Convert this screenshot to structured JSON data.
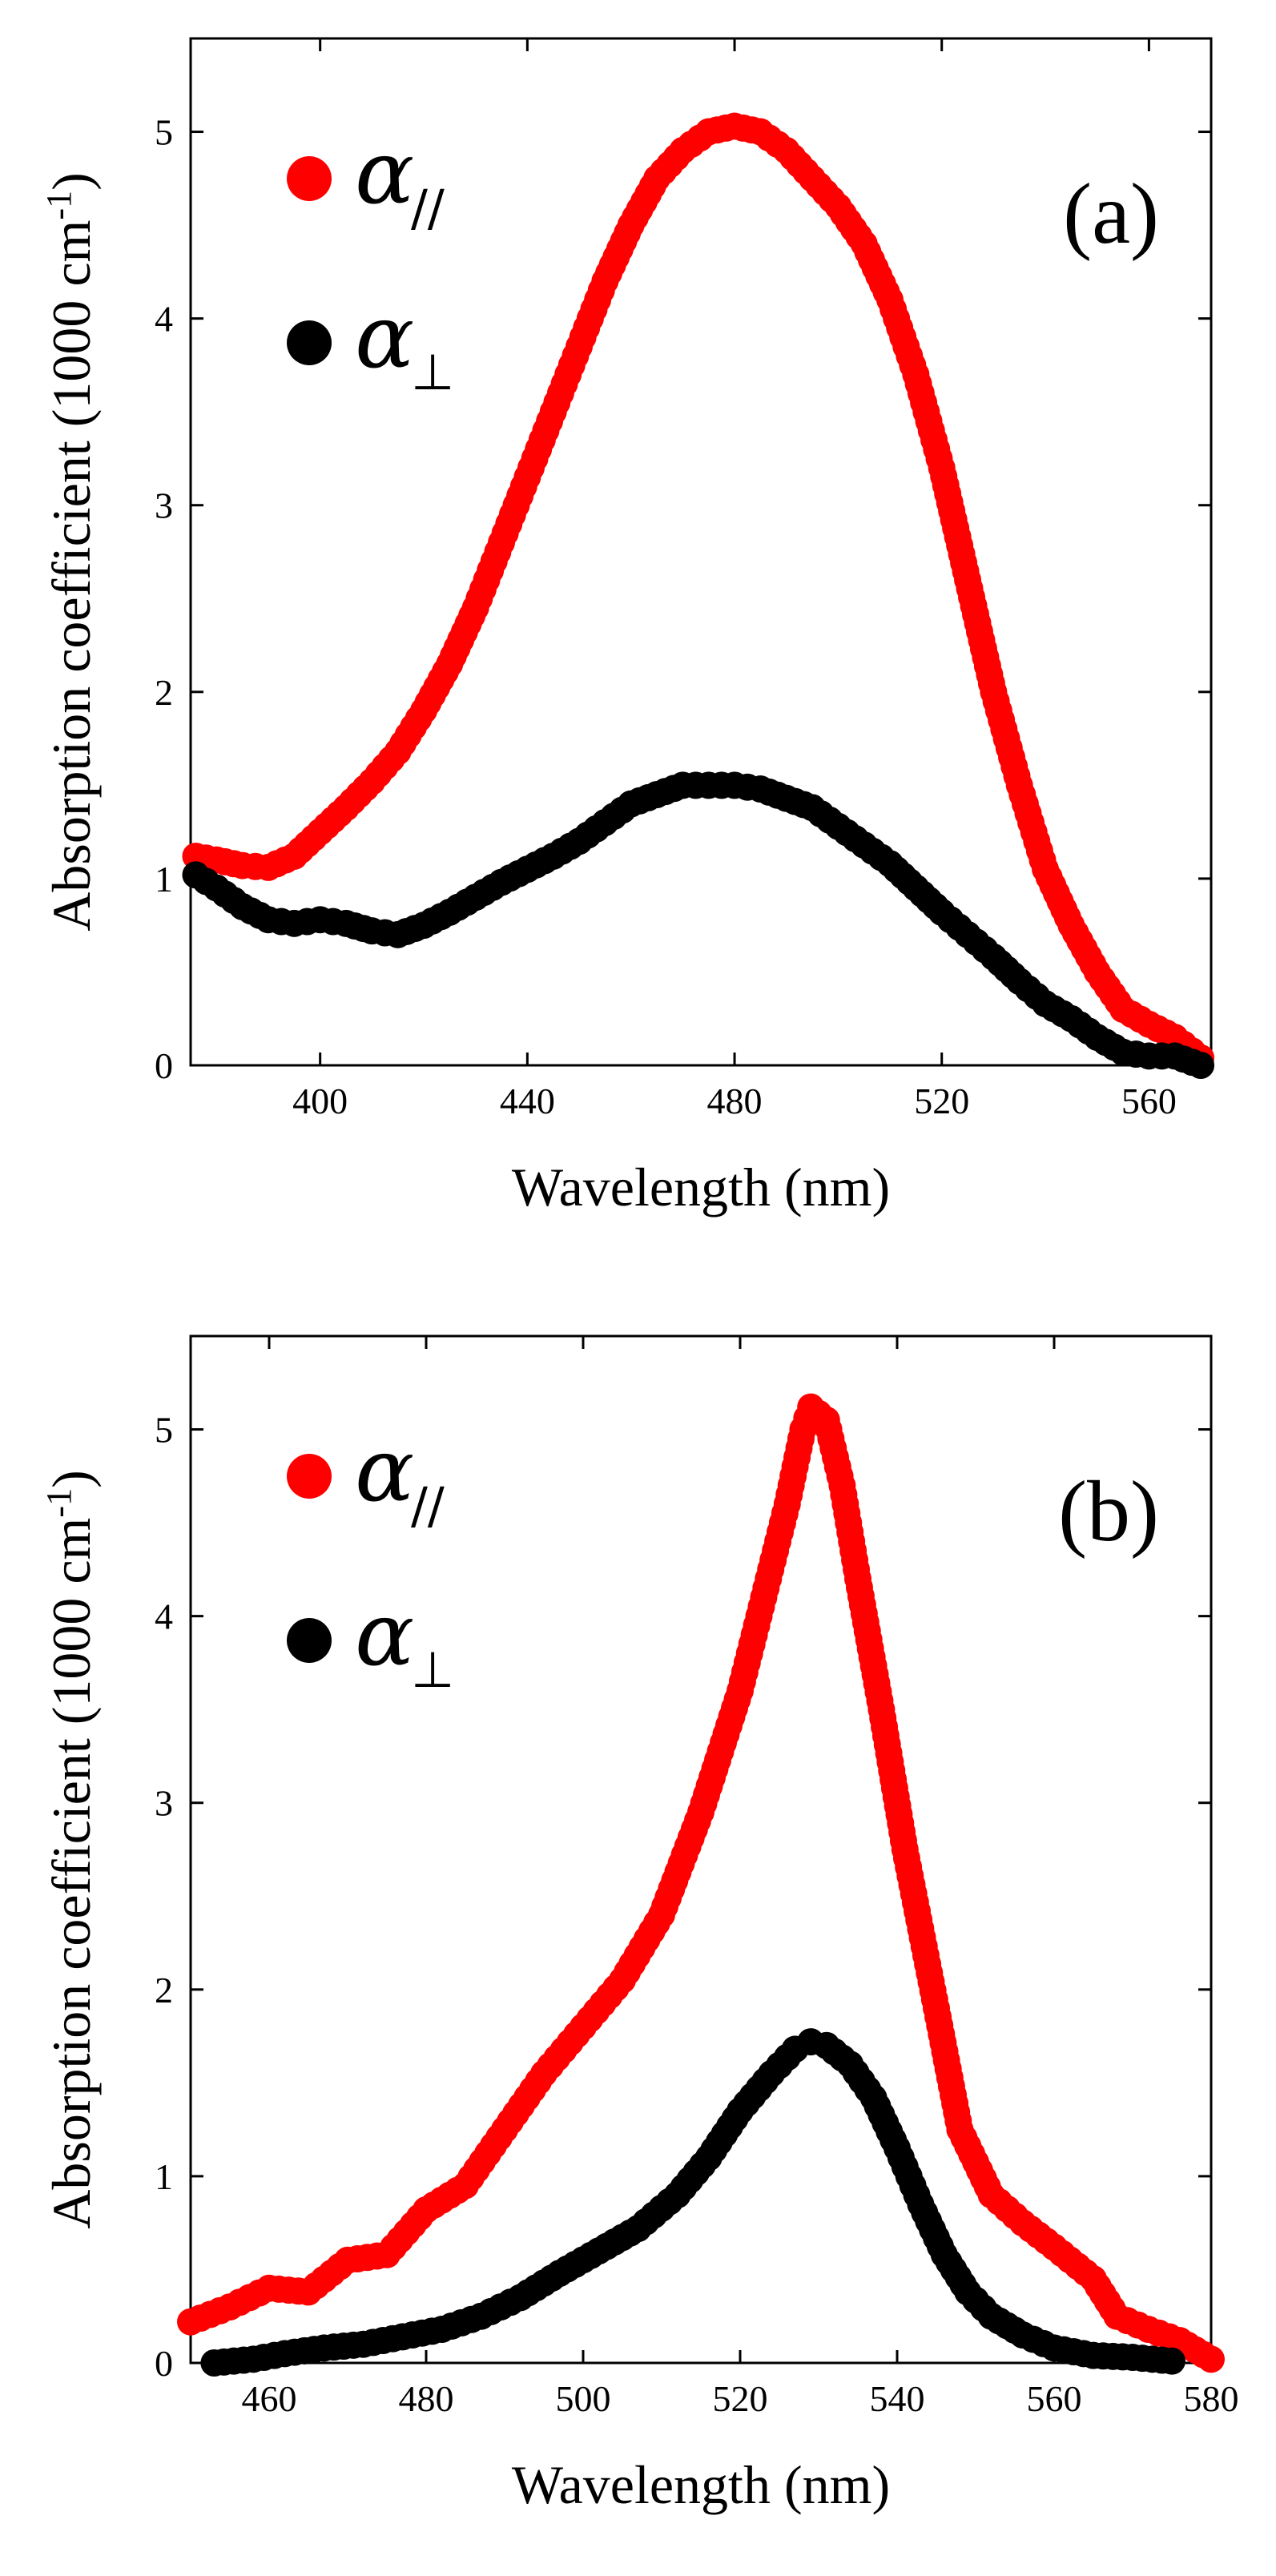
{
  "chart_data": [
    {
      "type": "scatter",
      "panel_label": "(a)",
      "xlabel": "Wavelength (nm)",
      "ylabel": "Absorption coefficient (1000 cm",
      "ylabel_sup": "-1",
      "ylabel_close": ")",
      "xlim": [
        375,
        572
      ],
      "ylim": [
        0,
        5.5
      ],
      "xticks": [
        400,
        440,
        480,
        520,
        560
      ],
      "yticks": [
        0,
        1,
        2,
        3,
        4,
        5
      ],
      "legend": [
        {
          "symbol": "α",
          "subscript": "//",
          "color": "#ff0000"
        },
        {
          "symbol": "α",
          "subscript": "⊥",
          "color": "#000000"
        }
      ],
      "series": [
        {
          "name": "α//",
          "color": "#ff0000",
          "points": [
            [
              376,
              1.12
            ],
            [
              380,
              1.1
            ],
            [
              385,
              1.07
            ],
            [
              390,
              1.06
            ],
            [
              395,
              1.12
            ],
            [
              400,
              1.25
            ],
            [
              405,
              1.38
            ],
            [
              410,
              1.52
            ],
            [
              415,
              1.68
            ],
            [
              420,
              1.9
            ],
            [
              425,
              2.15
            ],
            [
              430,
              2.45
            ],
            [
              435,
              2.8
            ],
            [
              440,
              3.15
            ],
            [
              445,
              3.5
            ],
            [
              450,
              3.85
            ],
            [
              455,
              4.2
            ],
            [
              460,
              4.5
            ],
            [
              465,
              4.75
            ],
            [
              470,
              4.9
            ],
            [
              475,
              5.0
            ],
            [
              480,
              5.03
            ],
            [
              485,
              5.0
            ],
            [
              490,
              4.9
            ],
            [
              495,
              4.75
            ],
            [
              500,
              4.6
            ],
            [
              505,
              4.4
            ],
            [
              510,
              4.1
            ],
            [
              515,
              3.7
            ],
            [
              520,
              3.2
            ],
            [
              525,
              2.6
            ],
            [
              530,
              2.0
            ],
            [
              535,
              1.5
            ],
            [
              540,
              1.05
            ],
            [
              545,
              0.75
            ],
            [
              550,
              0.5
            ],
            [
              555,
              0.3
            ],
            [
              560,
              0.22
            ],
            [
              565,
              0.15
            ],
            [
              570,
              0.04
            ]
          ]
        },
        {
          "name": "α⊥",
          "color": "#000000",
          "points": [
            [
              376,
              1.02
            ],
            [
              380,
              0.95
            ],
            [
              385,
              0.85
            ],
            [
              390,
              0.78
            ],
            [
              395,
              0.76
            ],
            [
              400,
              0.78
            ],
            [
              405,
              0.76
            ],
            [
              410,
              0.72
            ],
            [
              415,
              0.7
            ],
            [
              420,
              0.75
            ],
            [
              425,
              0.82
            ],
            [
              430,
              0.9
            ],
            [
              435,
              0.98
            ],
            [
              440,
              1.05
            ],
            [
              445,
              1.12
            ],
            [
              450,
              1.2
            ],
            [
              455,
              1.3
            ],
            [
              460,
              1.4
            ],
            [
              465,
              1.45
            ],
            [
              470,
              1.5
            ],
            [
              475,
              1.5
            ],
            [
              480,
              1.5
            ],
            [
              485,
              1.48
            ],
            [
              490,
              1.43
            ],
            [
              495,
              1.38
            ],
            [
              500,
              1.28
            ],
            [
              505,
              1.18
            ],
            [
              510,
              1.08
            ],
            [
              515,
              0.95
            ],
            [
              520,
              0.82
            ],
            [
              525,
              0.7
            ],
            [
              530,
              0.58
            ],
            [
              535,
              0.45
            ],
            [
              540,
              0.33
            ],
            [
              545,
              0.25
            ],
            [
              550,
              0.15
            ],
            [
              555,
              0.07
            ],
            [
              560,
              0.05
            ],
            [
              565,
              0.05
            ],
            [
              570,
              0.0
            ]
          ]
        }
      ]
    },
    {
      "type": "scatter",
      "panel_label": "(b)",
      "xlabel": "Wavelength (nm)",
      "ylabel": "Absorption coefficient (1000 cm",
      "ylabel_sup": "-1",
      "ylabel_close": ")",
      "xlim": [
        450,
        580
      ],
      "ylim": [
        0,
        5.5
      ],
      "xticks": [
        460,
        480,
        500,
        520,
        540,
        560,
        580
      ],
      "yticks": [
        0,
        1,
        2,
        3,
        4,
        5
      ],
      "legend": [
        {
          "symbol": "α",
          "subscript": "//",
          "color": "#ff0000"
        },
        {
          "symbol": "α",
          "subscript": "⊥",
          "color": "#000000"
        }
      ],
      "series": [
        {
          "name": "α//",
          "color": "#ff0000",
          "points": [
            [
              450,
              0.22
            ],
            [
              455,
              0.3
            ],
            [
              460,
              0.4
            ],
            [
              465,
              0.38
            ],
            [
              470,
              0.55
            ],
            [
              475,
              0.58
            ],
            [
              480,
              0.82
            ],
            [
              485,
              0.95
            ],
            [
              490,
              1.25
            ],
            [
              495,
              1.55
            ],
            [
              500,
              1.8
            ],
            [
              505,
              2.05
            ],
            [
              510,
              2.4
            ],
            [
              515,
              2.95
            ],
            [
              520,
              3.6
            ],
            [
              523,
              4.1
            ],
            [
              526,
              4.6
            ],
            [
              528,
              5.0
            ],
            [
              529,
              5.12
            ],
            [
              531,
              5.05
            ],
            [
              533,
              4.7
            ],
            [
              535,
              4.2
            ],
            [
              538,
              3.5
            ],
            [
              541,
              2.75
            ],
            [
              545,
              1.9
            ],
            [
              548,
              1.25
            ],
            [
              552,
              0.9
            ],
            [
              556,
              0.75
            ],
            [
              560,
              0.62
            ],
            [
              565,
              0.45
            ],
            [
              568,
              0.25
            ],
            [
              572,
              0.18
            ],
            [
              576,
              0.12
            ],
            [
              580,
              0.02
            ]
          ]
        },
        {
          "name": "α⊥",
          "color": "#000000",
          "points": [
            [
              453,
              0.0
            ],
            [
              458,
              0.02
            ],
            [
              462,
              0.05
            ],
            [
              467,
              0.08
            ],
            [
              472,
              0.1
            ],
            [
              477,
              0.14
            ],
            [
              482,
              0.18
            ],
            [
              487,
              0.25
            ],
            [
              492,
              0.35
            ],
            [
              497,
              0.48
            ],
            [
              502,
              0.6
            ],
            [
              507,
              0.72
            ],
            [
              512,
              0.9
            ],
            [
              516,
              1.1
            ],
            [
              520,
              1.35
            ],
            [
              524,
              1.55
            ],
            [
              527,
              1.68
            ],
            [
              529,
              1.72
            ],
            [
              531,
              1.7
            ],
            [
              534,
              1.6
            ],
            [
              537,
              1.42
            ],
            [
              540,
              1.15
            ],
            [
              543,
              0.85
            ],
            [
              546,
              0.58
            ],
            [
              549,
              0.38
            ],
            [
              552,
              0.25
            ],
            [
              556,
              0.15
            ],
            [
              560,
              0.08
            ],
            [
              565,
              0.04
            ],
            [
              570,
              0.03
            ],
            [
              575,
              0.01
            ]
          ]
        }
      ]
    }
  ]
}
